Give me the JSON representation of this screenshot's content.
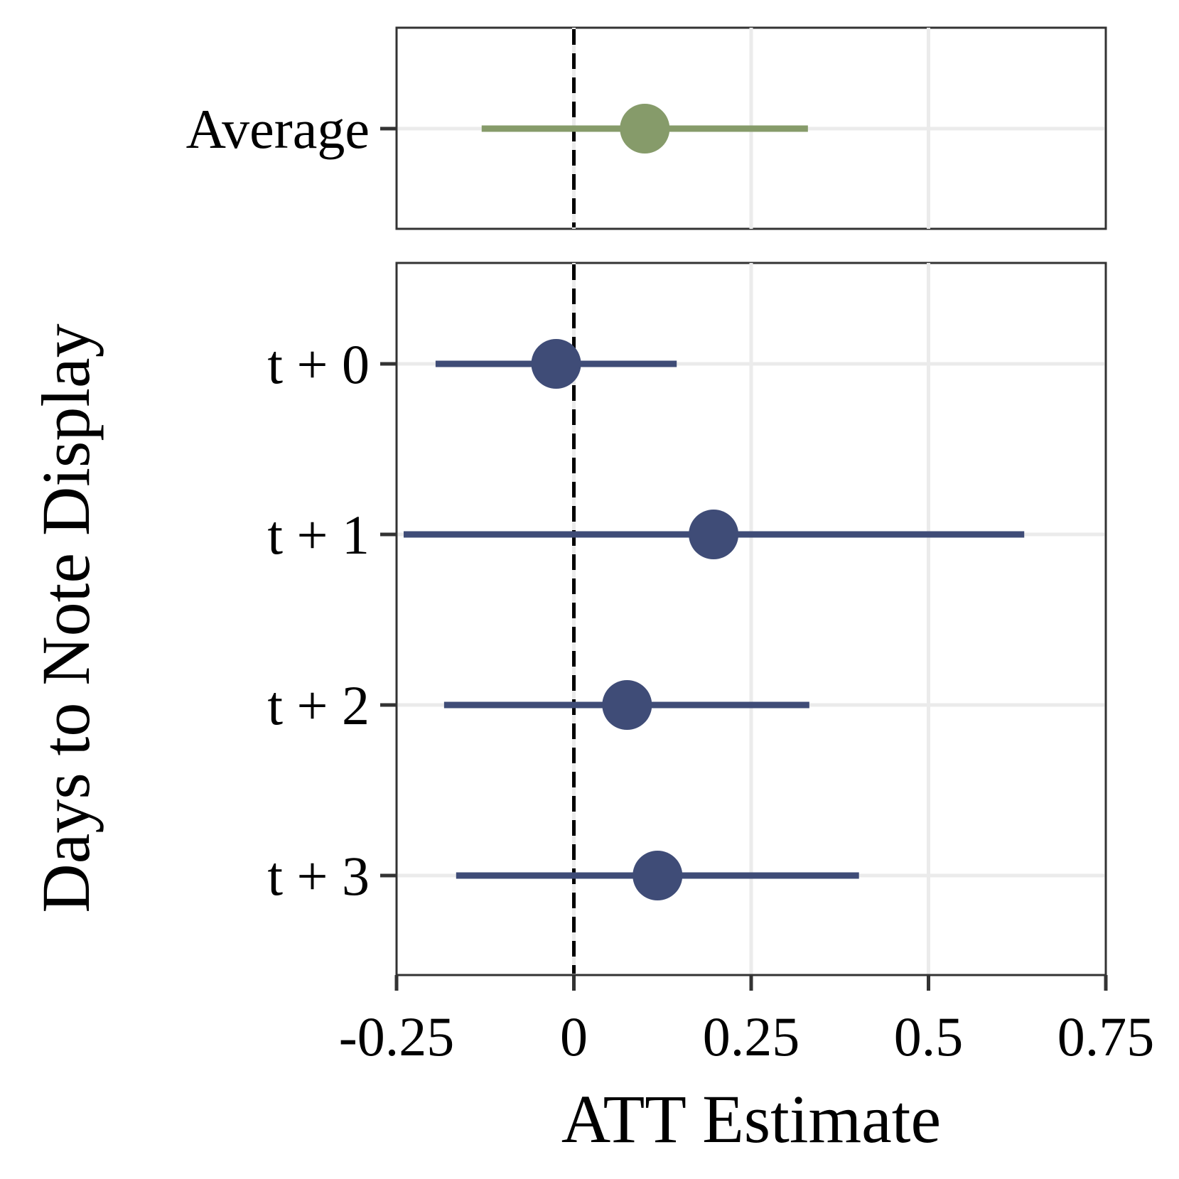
{
  "chart_data": {
    "type": "forest",
    "xlabel": "ATT Estimate",
    "ylabel": "Days to Note Display",
    "xlim": [
      -0.25,
      0.75
    ],
    "xticks": [
      -0.25,
      0,
      0.25,
      0.5,
      0.75
    ],
    "xtick_labels": [
      "-0.25",
      "0",
      "0.25",
      "0.5",
      "0.75"
    ],
    "reference_line": 0,
    "grid": true,
    "colors": {
      "average": "#869b6a",
      "daily": "#3f4c77",
      "reference": "#000000",
      "grid": "#ebebeb",
      "frame": "#333333"
    },
    "panels": [
      {
        "name": "average",
        "series": [
          {
            "label": "Average",
            "estimate": 0.1,
            "ci_low": -0.13,
            "ci_high": 0.33
          }
        ]
      },
      {
        "name": "daily",
        "series": [
          {
            "label": "t + 0",
            "estimate": -0.025,
            "ci_low": -0.195,
            "ci_high": 0.145
          },
          {
            "label": "t + 1",
            "estimate": 0.197,
            "ci_low": -0.24,
            "ci_high": 0.635
          },
          {
            "label": "t + 2",
            "estimate": 0.075,
            "ci_low": -0.183,
            "ci_high": 0.332
          },
          {
            "label": "t + 3",
            "estimate": 0.118,
            "ci_low": -0.166,
            "ci_high": 0.402
          }
        ]
      }
    ]
  }
}
